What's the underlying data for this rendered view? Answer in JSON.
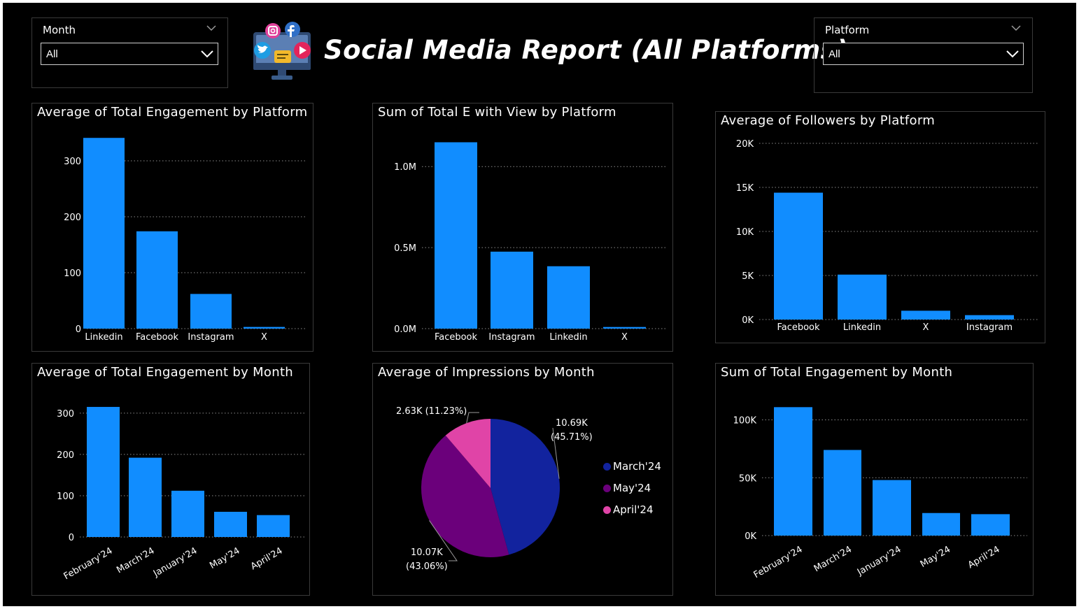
{
  "header": {
    "title": "Social Media Report (All Platforms)",
    "logo_icon": "social-media-monitor-icon"
  },
  "slicers": {
    "month": {
      "label": "Month",
      "value": "All"
    },
    "platform": {
      "label": "Platform",
      "value": "All"
    }
  },
  "colors": {
    "bar": "#118DFF",
    "grid": "#8a8a8a",
    "background": "#000000",
    "march": "#12239E",
    "may": "#6B007B",
    "april": "#E044A7"
  },
  "chart_data": [
    {
      "id": "eng-platform",
      "type": "bar",
      "title": "Average of Total Engagement by Platform",
      "categories": [
        "Linkedin",
        "Facebook",
        "Instagram",
        "X"
      ],
      "values": [
        341,
        174,
        62,
        3
      ],
      "ylim": [
        0,
        345
      ],
      "yticks": [
        0,
        100,
        200,
        300
      ],
      "ytick_labels": [
        "0",
        "100",
        "200",
        "300"
      ],
      "grid": true,
      "rotate_x": false
    },
    {
      "id": "view-platform",
      "type": "bar",
      "title": "Sum of Total E with View by Platform",
      "categories": [
        "Facebook",
        "Instagram",
        "Linkedin",
        "X"
      ],
      "values": [
        1150000,
        475000,
        385000,
        10000
      ],
      "ylim": [
        0,
        1165000
      ],
      "yticks": [
        0,
        500000,
        1000000
      ],
      "ytick_labels": [
        "0.0M",
        "0.5M",
        "1.0M"
      ],
      "grid": true,
      "rotate_x": false
    },
    {
      "id": "followers-platform",
      "type": "bar",
      "title": "Average of Followers by Platform",
      "categories": [
        "Facebook",
        "Linkedin",
        "X",
        "Instagram"
      ],
      "values": [
        14400,
        5100,
        1000,
        500
      ],
      "ylim": [
        0,
        20000
      ],
      "yticks": [
        0,
        5000,
        10000,
        15000,
        20000
      ],
      "ytick_labels": [
        "0K",
        "5K",
        "10K",
        "15K",
        "20K"
      ],
      "grid": true,
      "rotate_x": false
    },
    {
      "id": "eng-month",
      "type": "bar",
      "title": "Average of Total Engagement by Month",
      "categories": [
        "February'24",
        "March'24",
        "January'24",
        "May'24",
        "April'24"
      ],
      "values": [
        315,
        192,
        112,
        61,
        53
      ],
      "ylim": [
        0,
        320
      ],
      "yticks": [
        0,
        100,
        200,
        300
      ],
      "ytick_labels": [
        "0",
        "100",
        "200",
        "300"
      ],
      "grid": true,
      "rotate_x": true
    },
    {
      "id": "impressions-month",
      "type": "pie",
      "title": "Average of Impressions by Month",
      "categories": [
        "March'24",
        "May'24",
        "April'24"
      ],
      "values": [
        10.69,
        10.07,
        2.63
      ],
      "percent": [
        45.71,
        43.06,
        11.23
      ],
      "data_labels": [
        {
          "value": "10.69K",
          "pct": "(45.71%)"
        },
        {
          "value": "10.07K",
          "pct": "(43.06%)"
        },
        {
          "value": "2.63K (11.23%)",
          "pct": ""
        }
      ],
      "legend_position": "right"
    },
    {
      "id": "sum-eng-month",
      "type": "bar",
      "title": "Sum of Total Engagement by Month",
      "categories": [
        "February'24",
        "March'24",
        "January'24",
        "May'24",
        "April'24"
      ],
      "values": [
        111000,
        74000,
        48000,
        19500,
        18500
      ],
      "ylim": [
        0,
        113000
      ],
      "yticks": [
        0,
        50000,
        100000
      ],
      "ytick_labels": [
        "0K",
        "50K",
        "100K"
      ],
      "grid": true,
      "rotate_x": true
    }
  ]
}
